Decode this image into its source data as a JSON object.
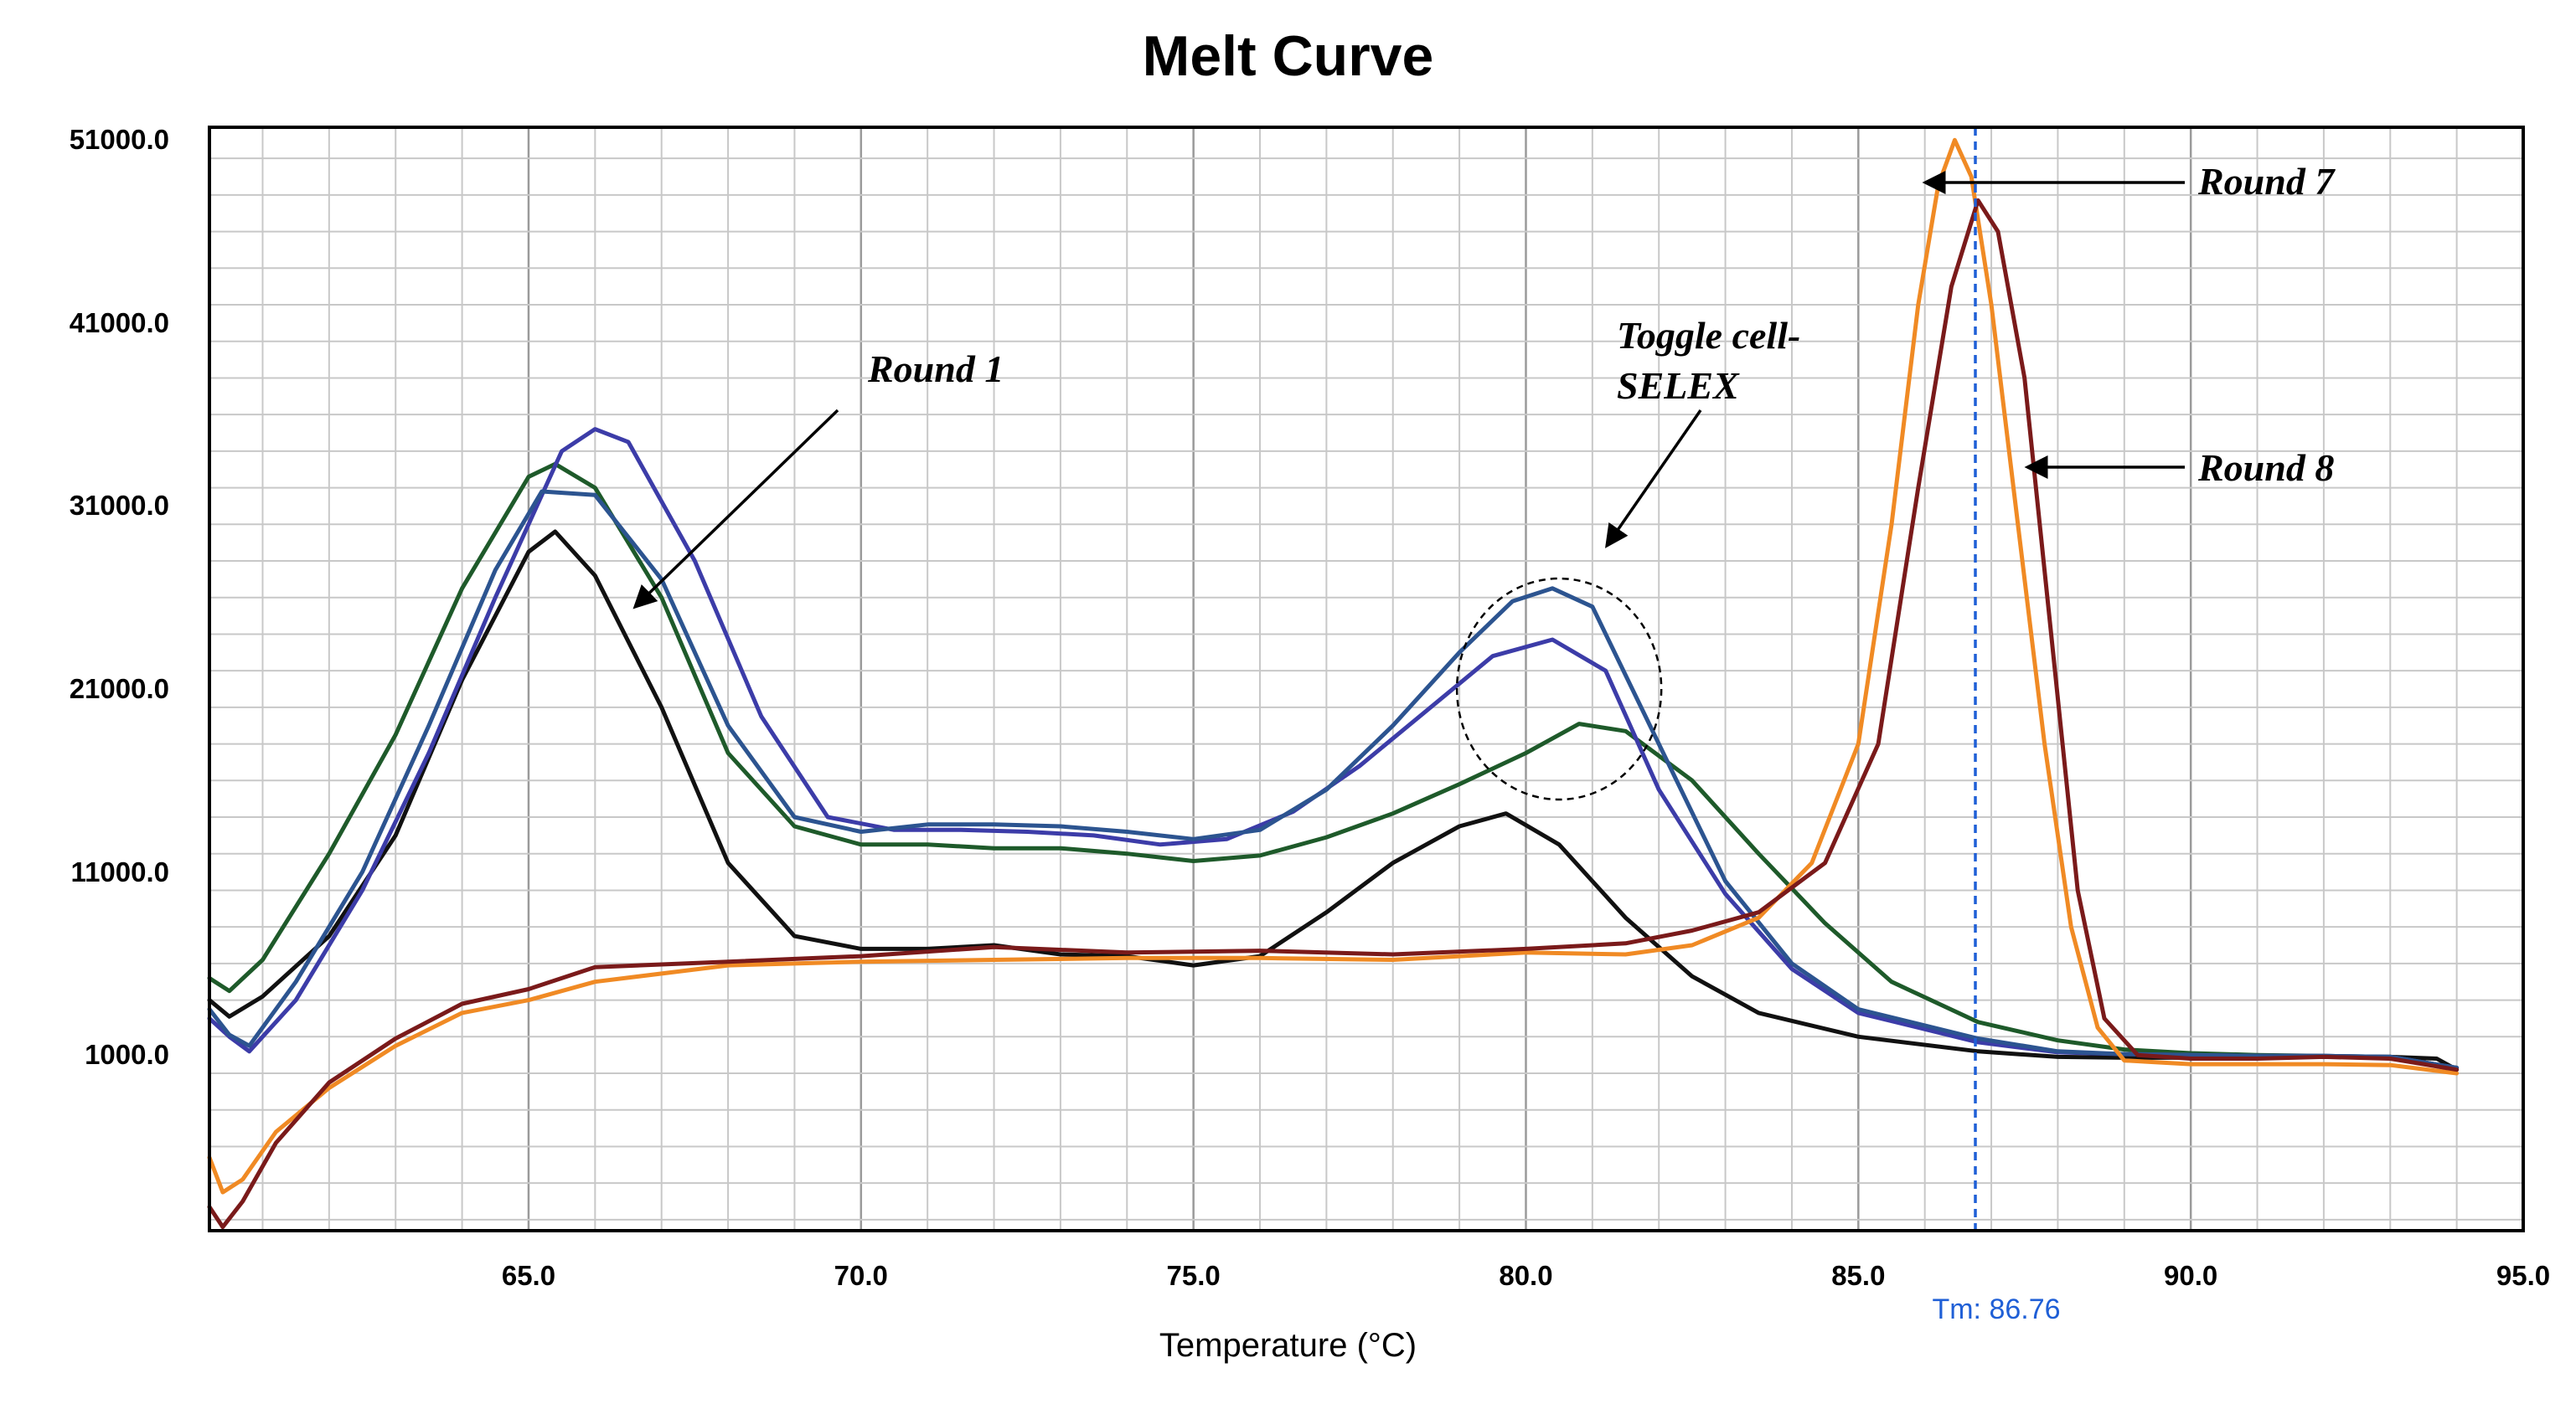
{
  "chart_data": {
    "type": "line",
    "title": "Melt Curve",
    "xlabel": "Temperature (°C)",
    "ylabel": "",
    "xlim": [
      60.2,
      95.0
    ],
    "ylim": [
      -8600,
      51700
    ],
    "x_ticks": [
      "65.0",
      "70.0",
      "75.0",
      "80.0",
      "85.0",
      "90.0",
      "95.0"
    ],
    "y_ticks": [
      "1000.0",
      "11000.0",
      "21000.0",
      "31000.0",
      "41000.0",
      "51000.0"
    ],
    "x_tick_values": [
      65,
      70,
      75,
      80,
      85,
      90,
      95
    ],
    "y_tick_values": [
      1000,
      11000,
      21000,
      31000,
      41000,
      51000
    ],
    "grid": true,
    "tm_marker": {
      "x": 86.76,
      "label": "Tm: 86.76",
      "color": "#1f5fd6"
    },
    "series": [
      {
        "name": "Black",
        "color": "#111111",
        "x": [
          60.2,
          60.5,
          61.0,
          62.0,
          63.0,
          64.0,
          65.0,
          65.4,
          66.0,
          67.0,
          68.0,
          69.0,
          70.0,
          71.0,
          72.0,
          73.0,
          74.0,
          75.0,
          76.0,
          77.0,
          78.0,
          79.0,
          79.7,
          80.5,
          81.5,
          82.5,
          83.5,
          85.0,
          86.8,
          88.0,
          89.0,
          90.0,
          91.0,
          92.0,
          93.0,
          93.7,
          94.0
        ],
        "y": [
          4000,
          3100,
          4200,
          7500,
          13000,
          21500,
          28500,
          29600,
          27200,
          20000,
          11500,
          7500,
          6800,
          6800,
          7000,
          6500,
          6400,
          5900,
          6400,
          8800,
          11500,
          13500,
          14200,
          12500,
          8500,
          5300,
          3300,
          2000,
          1200,
          900,
          850,
          850,
          900,
          900,
          900,
          800,
          200
        ]
      },
      {
        "name": "Dark green",
        "color": "#1e5a2a",
        "x": [
          60.2,
          60.5,
          61.0,
          62.0,
          63.0,
          64.0,
          65.0,
          65.4,
          66.0,
          67.0,
          68.0,
          69.0,
          70.0,
          71.0,
          72.0,
          73.0,
          74.0,
          75.0,
          76.0,
          77.0,
          78.0,
          79.0,
          80.0,
          80.8,
          81.5,
          82.5,
          83.5,
          84.5,
          85.5,
          86.8,
          88.0,
          89.0,
          90.0,
          91.0,
          92.0,
          93.0,
          94.0
        ],
        "y": [
          5200,
          4500,
          6200,
          12000,
          18500,
          26500,
          32600,
          33300,
          32000,
          26000,
          17500,
          13500,
          12500,
          12500,
          12300,
          12300,
          12000,
          11600,
          11900,
          12900,
          14200,
          15800,
          17500,
          19100,
          18700,
          16000,
          12000,
          8200,
          5000,
          2800,
          1800,
          1300,
          1100,
          1000,
          950,
          900,
          300
        ]
      },
      {
        "name": "Blue",
        "color": "#3c3ca8",
        "x": [
          60.2,
          60.5,
          60.8,
          61.5,
          62.5,
          63.5,
          64.5,
          65.5,
          66.0,
          66.5,
          67.5,
          68.5,
          69.5,
          70.5,
          71.5,
          72.5,
          73.5,
          74.5,
          75.5,
          76.5,
          77.5,
          78.5,
          79.5,
          80.4,
          81.2,
          82.0,
          83.0,
          84.0,
          85.0,
          86.8,
          88.0,
          89.0,
          90.0,
          91.0,
          92.0,
          93.0,
          94.0
        ],
        "y": [
          3000,
          2000,
          1200,
          4000,
          10000,
          17500,
          26000,
          34000,
          35200,
          34500,
          28000,
          19500,
          14000,
          13300,
          13300,
          13200,
          13000,
          12500,
          12800,
          14300,
          16800,
          19800,
          22800,
          23700,
          22000,
          15500,
          9800,
          5700,
          3300,
          1700,
          1150,
          1050,
          1000,
          950,
          950,
          900,
          300
        ]
      },
      {
        "name": "Steel blue",
        "color": "#2c5490",
        "x": [
          60.2,
          60.5,
          60.8,
          61.5,
          62.5,
          63.5,
          64.5,
          65.2,
          66.0,
          67.0,
          68.0,
          69.0,
          70.0,
          71.0,
          72.0,
          73.0,
          74.0,
          75.0,
          76.0,
          77.0,
          78.0,
          79.0,
          79.8,
          80.4,
          81.0,
          82.0,
          83.0,
          84.0,
          85.0,
          86.8,
          88.0,
          89.0,
          90.0,
          91.0,
          92.0,
          93.0,
          94.0
        ],
        "y": [
          3500,
          2100,
          1500,
          5000,
          11000,
          19000,
          27500,
          31800,
          31600,
          27000,
          19000,
          14000,
          13200,
          13600,
          13600,
          13500,
          13200,
          12800,
          13300,
          15500,
          19000,
          23000,
          25800,
          26500,
          25500,
          18000,
          10500,
          6000,
          3500,
          1900,
          1200,
          1050,
          1000,
          950,
          950,
          900,
          300
        ]
      },
      {
        "name": "Orange (Round 7)",
        "color": "#f08a24",
        "x": [
          60.2,
          60.4,
          60.7,
          61.2,
          62.0,
          63.0,
          64.0,
          65.0,
          66.0,
          68.0,
          70.0,
          72.0,
          74.0,
          76.0,
          78.0,
          80.0,
          81.5,
          82.5,
          83.5,
          84.3,
          85.0,
          85.5,
          85.9,
          86.2,
          86.45,
          86.7,
          87.0,
          87.4,
          87.8,
          88.2,
          88.6,
          89.0,
          90.0,
          91.0,
          92.0,
          93.0,
          94.0
        ],
        "y": [
          -4600,
          -6500,
          -5800,
          -3200,
          -800,
          1500,
          3300,
          4000,
          5000,
          5900,
          6100,
          6200,
          6300,
          6300,
          6200,
          6600,
          6500,
          7000,
          8500,
          11500,
          18000,
          30000,
          42000,
          48500,
          51000,
          49000,
          42000,
          30000,
          18000,
          8000,
          2500,
          700,
          500,
          500,
          500,
          450,
          0
        ]
      },
      {
        "name": "Dark red (Round 8)",
        "color": "#7a1a1a",
        "x": [
          60.2,
          60.4,
          60.7,
          61.2,
          62.0,
          63.0,
          64.0,
          65.0,
          66.0,
          68.0,
          70.0,
          72.0,
          74.0,
          76.0,
          78.0,
          80.0,
          81.5,
          82.5,
          83.5,
          84.5,
          85.3,
          85.9,
          86.4,
          86.8,
          87.1,
          87.5,
          87.9,
          88.3,
          88.7,
          89.2,
          90.0,
          91.0,
          92.0,
          93.0,
          94.0
        ],
        "y": [
          -7300,
          -8400,
          -7000,
          -3800,
          -500,
          1900,
          3800,
          4600,
          5800,
          6100,
          6400,
          6900,
          6600,
          6700,
          6500,
          6800,
          7100,
          7800,
          8800,
          11500,
          18000,
          32000,
          43000,
          47700,
          46000,
          38000,
          24000,
          10000,
          3000,
          1000,
          800,
          800,
          900,
          800,
          200
        ]
      }
    ],
    "annotations": [
      {
        "text": "Round 1"
      },
      {
        "text": "Toggle cell-"
      },
      {
        "text": "SELEX"
      },
      {
        "text": "Round 7"
      },
      {
        "text": "Round 8"
      }
    ]
  }
}
